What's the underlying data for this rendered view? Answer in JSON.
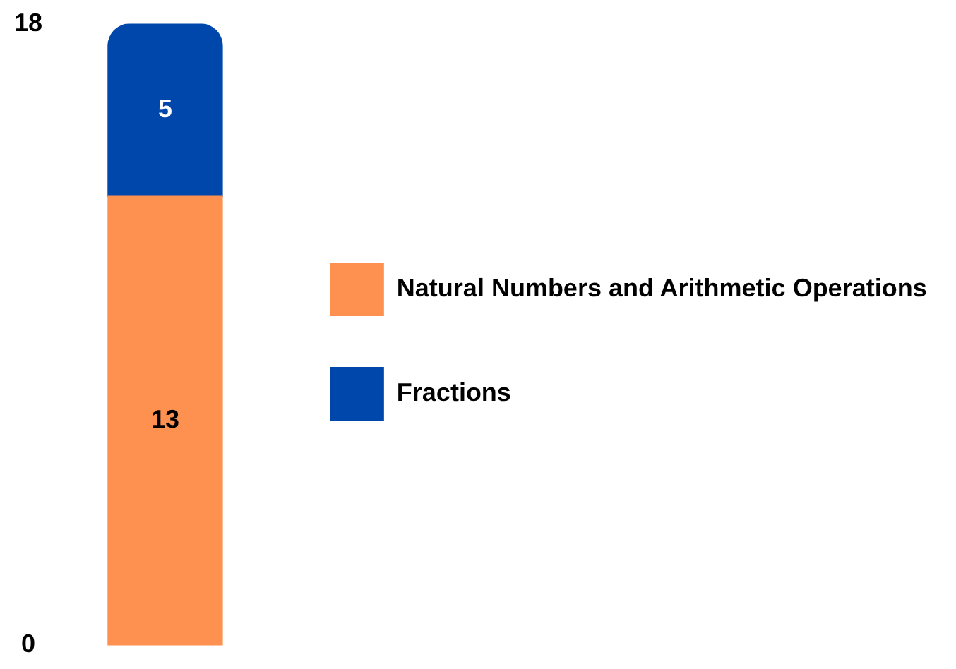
{
  "chart_data": {
    "type": "bar",
    "stacked": true,
    "categories": [
      null
    ],
    "series": [
      {
        "name": "Natural Numbers and Arithmetic Operations",
        "color": "#fe9150",
        "values": [
          13
        ]
      },
      {
        "name": "Fractions",
        "color": "#0047ab",
        "values": [
          5
        ]
      }
    ],
    "ylim": [
      0,
      18
    ],
    "yticks": [
      0,
      18
    ],
    "grid": false,
    "legend": "right",
    "data_labels": true,
    "tick_labels": "y"
  }
}
